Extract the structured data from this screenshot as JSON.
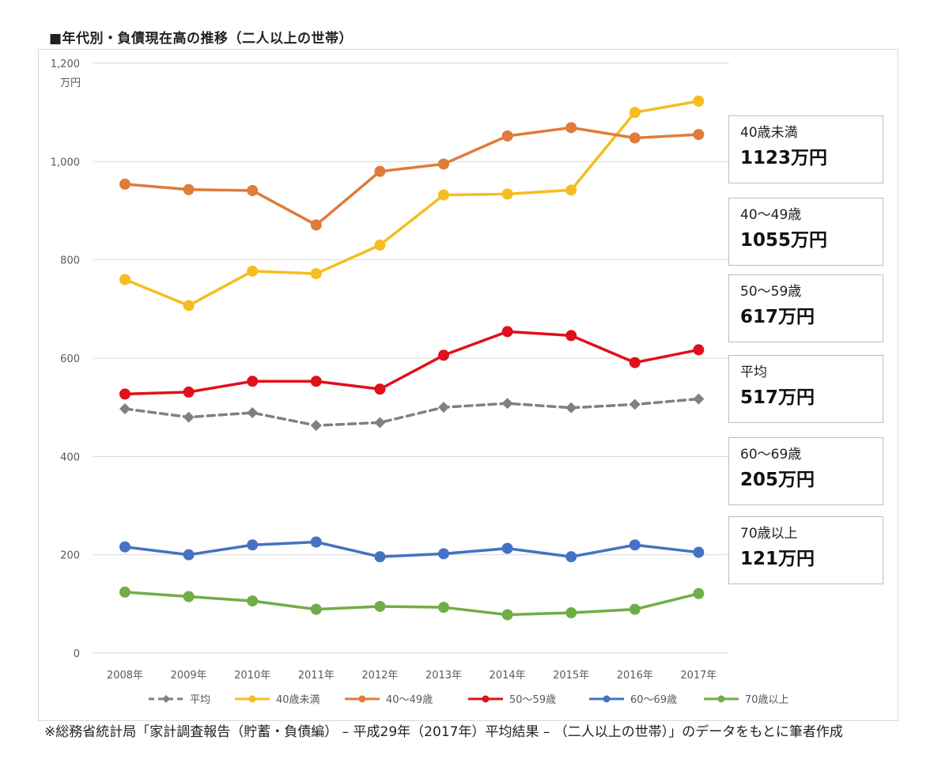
{
  "title": "■年代別・負債現在高の推移（二人以上の世帯）",
  "source_note": "※総務省統計局「家計調査報告（貯蓄・負債編） – 平成29年（2017年）平均結果 – （二人以上の世帯）」のデータをもとに筆者作成",
  "callouts": [
    {
      "label": "40歳未満",
      "value": "1123万円"
    },
    {
      "label": "40～49歳",
      "value": "1055万円"
    },
    {
      "label": "50～59歳",
      "value": "617万円"
    },
    {
      "label": "平均",
      "value": "517万円"
    },
    {
      "label": "60～69歳",
      "value": "205万円"
    },
    {
      "label": "70歳以上",
      "value": "121万円"
    }
  ],
  "chart_data": {
    "type": "line",
    "title": "■年代別・負債現在高の推移（二人以上の世帯）",
    "xlabel": "",
    "ylabel": "万円",
    "ylim": [
      0,
      1200
    ],
    "yticks": [
      0,
      200,
      400,
      600,
      800,
      1000,
      1200
    ],
    "ytick_labels": [
      "0",
      "200",
      "400",
      "600",
      "800",
      "1,000",
      "1,200"
    ],
    "categories": [
      "2008年",
      "2009年",
      "2010年",
      "2011年",
      "2012年",
      "2013年",
      "2014年",
      "2015年",
      "2016年",
      "2017年"
    ],
    "grid": true,
    "legend_position": "bottom",
    "series": [
      {
        "name": "平均",
        "color": "#808080",
        "dashed": true,
        "marker": "diamond",
        "values": [
          497,
          480,
          489,
          463,
          469,
          500,
          508,
          499,
          506,
          517
        ]
      },
      {
        "name": "40歳未満",
        "color": "#F5BD1F",
        "dashed": false,
        "marker": "circle",
        "values": [
          760,
          707,
          777,
          772,
          830,
          932,
          934,
          942,
          1100,
          1123
        ]
      },
      {
        "name": "40～49歳",
        "color": "#E07B39",
        "dashed": false,
        "marker": "circle",
        "values": [
          954,
          943,
          941,
          871,
          980,
          995,
          1052,
          1069,
          1048,
          1055
        ]
      },
      {
        "name": "50～59歳",
        "color": "#E0101A",
        "dashed": false,
        "marker": "circle",
        "values": [
          527,
          531,
          553,
          553,
          537,
          606,
          654,
          646,
          591,
          617
        ]
      },
      {
        "name": "60～69歳",
        "color": "#4472C4",
        "dashed": false,
        "marker": "circle",
        "values": [
          216,
          200,
          220,
          226,
          196,
          202,
          213,
          196,
          220,
          205
        ]
      },
      {
        "name": "70歳以上",
        "color": "#70AD47",
        "dashed": false,
        "marker": "circle",
        "values": [
          124,
          115,
          106,
          89,
          95,
          93,
          78,
          82,
          89,
          121
        ]
      }
    ]
  }
}
